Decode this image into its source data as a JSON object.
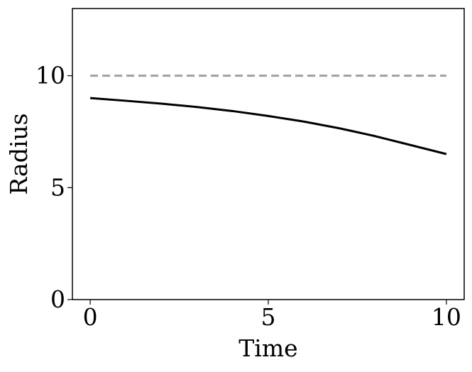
{
  "chart_data": {
    "type": "line",
    "xlabel": "Time",
    "ylabel": "Radius",
    "xlim": [
      -0.5,
      10.5
    ],
    "ylim": [
      0,
      13
    ],
    "x_ticks": [
      0,
      5,
      10
    ],
    "y_ticks": [
      0,
      5,
      10
    ],
    "x_tick_labels": [
      "0",
      "5",
      "10"
    ],
    "y_tick_labels": [
      "0",
      "5",
      "10"
    ],
    "grid": false,
    "series": [
      {
        "style": "solid",
        "color": "#000000",
        "x": [
          0,
          1,
          2,
          3,
          4,
          5,
          6,
          7,
          8,
          9,
          10
        ],
        "y": [
          9.0,
          8.88,
          8.75,
          8.6,
          8.42,
          8.2,
          7.95,
          7.65,
          7.3,
          6.9,
          6.5
        ]
      },
      {
        "style": "dashed",
        "color": "#a0a0a0",
        "x": [
          0,
          10
        ],
        "y": [
          10,
          10
        ]
      }
    ]
  }
}
